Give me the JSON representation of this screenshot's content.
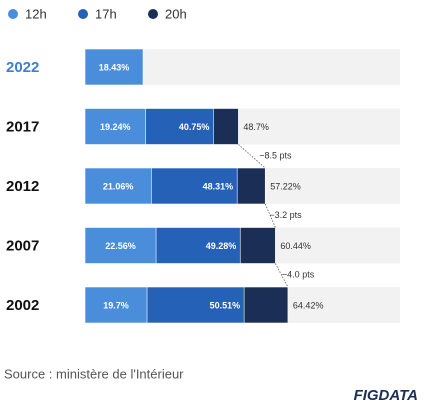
{
  "chart_data": {
    "type": "overlap_bar",
    "categories": [
      "2022",
      "2017",
      "2012",
      "2007",
      "2002"
    ],
    "series": [
      {
        "name": "12h",
        "color": "#4a8edb",
        "values": [
          18.43,
          19.24,
          21.06,
          22.56,
          19.7
        ],
        "value_labels": [
          "18.43%",
          "19.24%",
          "21.06%",
          "22.56%",
          "19.7%"
        ]
      },
      {
        "name": "17h",
        "color": "#2561b6",
        "values": [
          null,
          40.75,
          48.31,
          49.28,
          50.51
        ],
        "value_labels": [
          null,
          "40.75%",
          "48.31%",
          "49.28%",
          "50.51%"
        ]
      },
      {
        "name": "20h",
        "color": "#1b2e55",
        "values": [
          null,
          48.7,
          57.22,
          60.44,
          64.42
        ],
        "value_labels": [
          null,
          "48.7%",
          "57.22%",
          "60.44%",
          "64.42%"
        ]
      }
    ],
    "xlim": [
      0,
      100
    ],
    "track_color": "#f2f2f2",
    "annotations": [
      "−8.5 pts",
      "−3.2 pts",
      "−4.0 pts"
    ],
    "source": "Source : ministère de l'Intérieur",
    "logo": "FIGDATA"
  }
}
